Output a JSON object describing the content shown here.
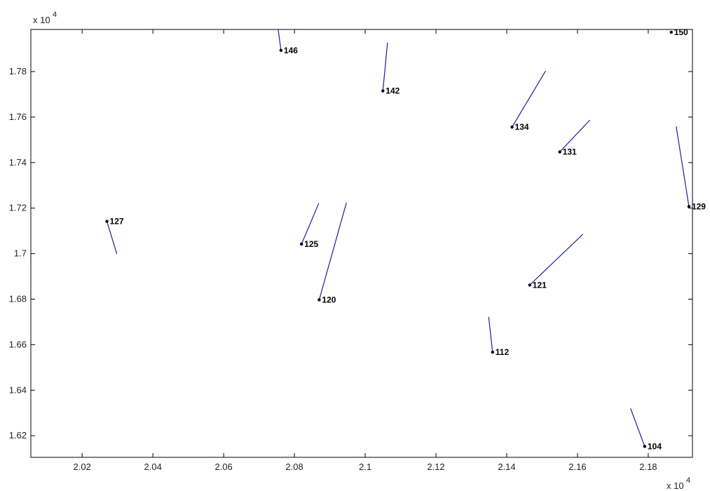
{
  "chart_data": {
    "type": "scatter",
    "title": "",
    "xlabel": "",
    "ylabel": "",
    "x_multiplier_label": "x 10",
    "x_multiplier_exponent": "4",
    "y_multiplier_label": "x 10",
    "y_multiplier_exponent": "4",
    "xlim": [
      20055,
      21925
    ],
    "ylim": [
      16105,
      17985
    ],
    "x_ticks": [
      20200,
      20400,
      20600,
      20800,
      21000,
      21200,
      21400,
      21600,
      21800
    ],
    "x_tick_labels": [
      "2.02",
      "2.04",
      "2.06",
      "2.08",
      "2.1",
      "2.12",
      "2.14",
      "2.16",
      "2.18"
    ],
    "y_ticks": [
      16200,
      16400,
      16600,
      16800,
      17000,
      17200,
      17400,
      17600,
      17800
    ],
    "y_tick_labels": [
      "1.62",
      "1.64",
      "1.66",
      "1.68",
      "1.7",
      "1.72",
      "1.74",
      "1.76",
      "1.78"
    ],
    "grid": false,
    "points": [
      {
        "label": "104",
        "x": 21790,
        "y": 16153,
        "dx": -40,
        "dy": 167
      },
      {
        "label": "112",
        "x": 21360,
        "y": 16567,
        "dx": -11,
        "dy": 155
      },
      {
        "label": "120",
        "x": 20870,
        "y": 16797,
        "dx": 77,
        "dy": 427
      },
      {
        "label": "121",
        "x": 21465,
        "y": 16862,
        "dx": 150,
        "dy": 223
      },
      {
        "label": "125",
        "x": 20820,
        "y": 17042,
        "dx": 49,
        "dy": 180
      },
      {
        "label": "127",
        "x": 20270,
        "y": 17142,
        "dx": 28,
        "dy": -143
      },
      {
        "label": "129",
        "x": 21915,
        "y": 17207,
        "dx": -36,
        "dy": 352
      },
      {
        "label": "131",
        "x": 21550,
        "y": 17447,
        "dx": 85,
        "dy": 140
      },
      {
        "label": "134",
        "x": 21415,
        "y": 17556,
        "dx": 95,
        "dy": 247
      },
      {
        "label": "142",
        "x": 21050,
        "y": 17715,
        "dx": 13,
        "dy": 212
      },
      {
        "label": "146",
        "x": 20762,
        "y": 17893,
        "dx": -8,
        "dy": 92
      },
      {
        "label": "150",
        "x": 21865,
        "y": 17973,
        "dx": 0,
        "dy": 0
      }
    ],
    "colors": {
      "vector": "#1e1ea0",
      "point": "#000000",
      "axes": "#000000"
    }
  }
}
